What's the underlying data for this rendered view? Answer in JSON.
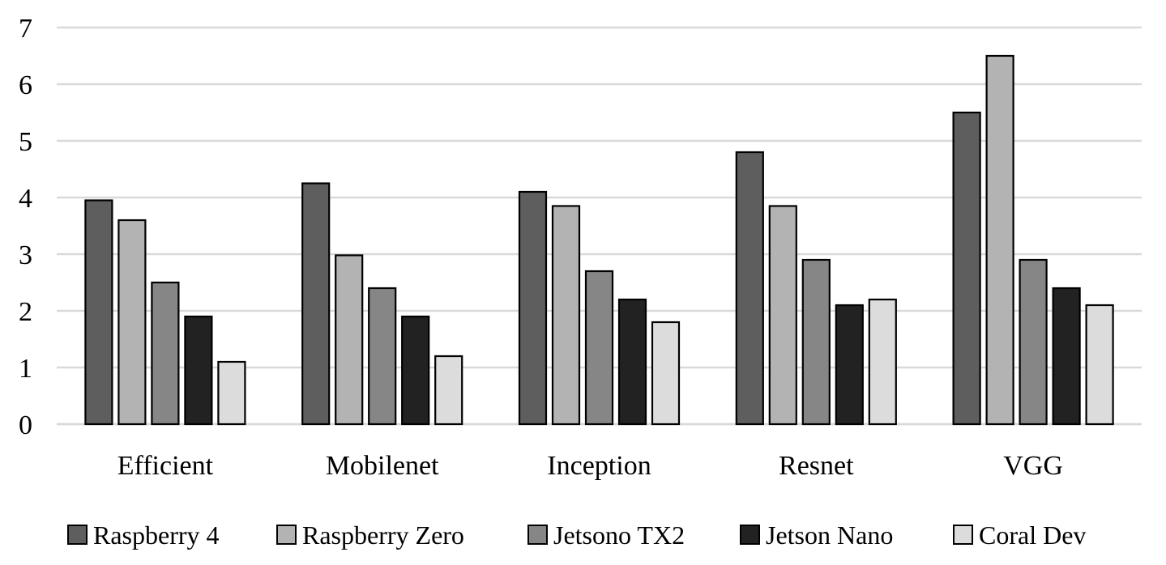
{
  "chart_data": {
    "type": "bar",
    "title": "",
    "xlabel": "",
    "ylabel": "",
    "categories": [
      "Efficient",
      "Mobilenet",
      "Inception",
      "Resnet",
      "VGG"
    ],
    "ylim": [
      0,
      7
    ],
    "yticks": [
      "0",
      "1",
      "2",
      "3",
      "4",
      "5",
      "6",
      "7"
    ],
    "grid": true,
    "legend_position": "bottom",
    "series": [
      {
        "name": "Raspberry 4",
        "color": "#5e5e5e",
        "values": [
          3.95,
          4.25,
          4.1,
          4.8,
          5.5
        ]
      },
      {
        "name": "Raspberry Zero",
        "color": "#b3b3b3",
        "values": [
          3.6,
          2.98,
          3.85,
          3.85,
          6.5
        ]
      },
      {
        "name": "Jetsono TX2",
        "color": "#868686",
        "values": [
          2.5,
          2.4,
          2.7,
          2.9,
          2.9
        ]
      },
      {
        "name": "Jetson Nano",
        "color": "#222222",
        "values": [
          1.9,
          1.9,
          2.2,
          2.1,
          2.4
        ]
      },
      {
        "name": "Coral Dev",
        "color": "#dcdcdc",
        "values": [
          1.1,
          1.2,
          1.8,
          2.2,
          2.1
        ]
      }
    ]
  }
}
